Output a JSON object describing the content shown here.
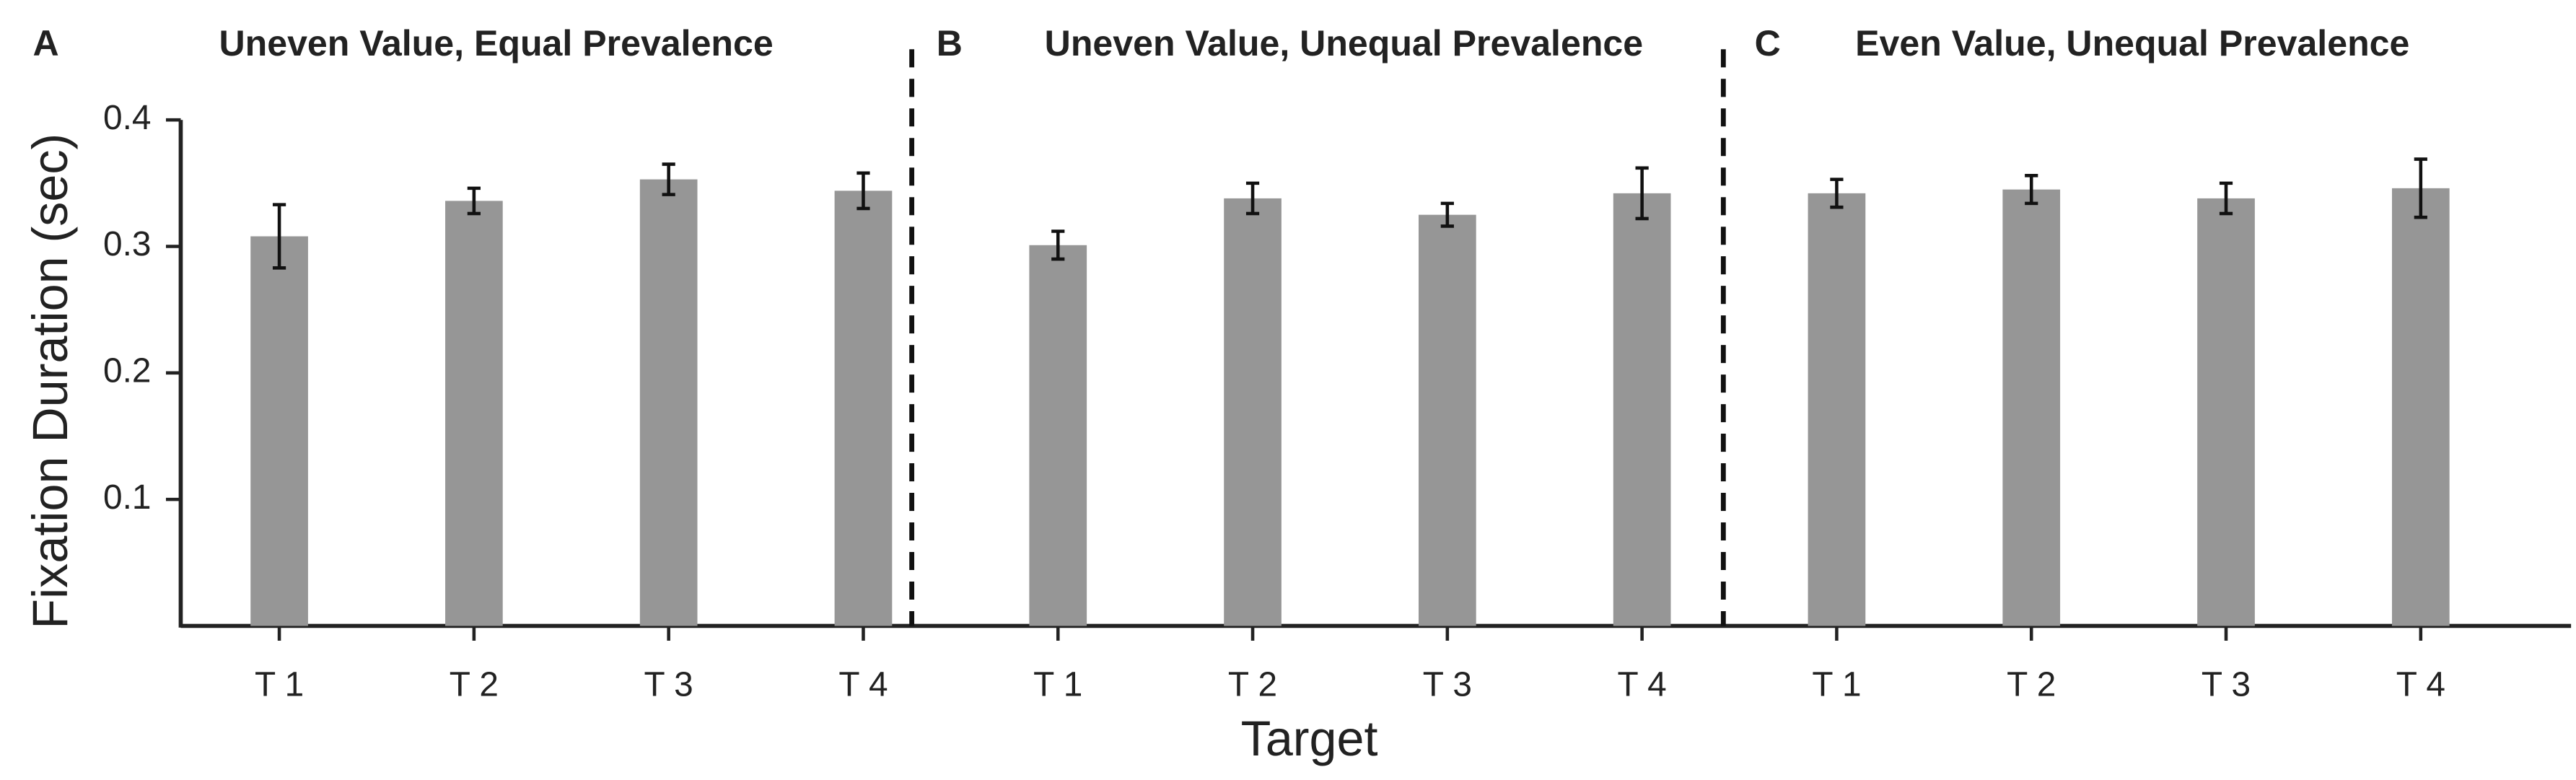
{
  "chart_data": [
    {
      "type": "bar",
      "panel": "A",
      "title": "Uneven Value, Equal Prevalence",
      "ylabel": "Fixation Duration (sec)",
      "categories": [
        "T 1",
        "T 2",
        "T 3",
        "T 4"
      ],
      "series": [
        {
          "color": "#969696",
          "values": [
            0.308,
            0.336,
            0.353,
            0.344
          ],
          "errors": [
            0.025,
            0.01,
            0.012,
            0.014
          ]
        }
      ],
      "ylim": [
        0,
        0.4
      ],
      "yticks": [
        0.1,
        0.2,
        0.3,
        0.4
      ]
    },
    {
      "type": "bar",
      "panel": "B",
      "title": "Uneven Value, Unequal Prevalence",
      "xlabel": "Target",
      "categories": [
        "T 1",
        "T 2",
        "T 3",
        "T 4"
      ],
      "series": [
        {
          "color": "#969696",
          "values": [
            0.301,
            0.338,
            0.325,
            0.342
          ],
          "errors": [
            0.011,
            0.012,
            0.009,
            0.02
          ]
        }
      ]
    },
    {
      "type": "bar",
      "panel": "C",
      "title": "Even Value, Unequal Prevalence",
      "categories": [
        "T 1",
        "T 2",
        "T 3",
        "T 4"
      ],
      "series": [
        {
          "color": "#969696",
          "values": [
            0.342,
            0.345,
            0.338,
            0.346
          ],
          "errors": [
            0.011,
            0.011,
            0.012,
            0.023
          ]
        }
      ]
    }
  ]
}
